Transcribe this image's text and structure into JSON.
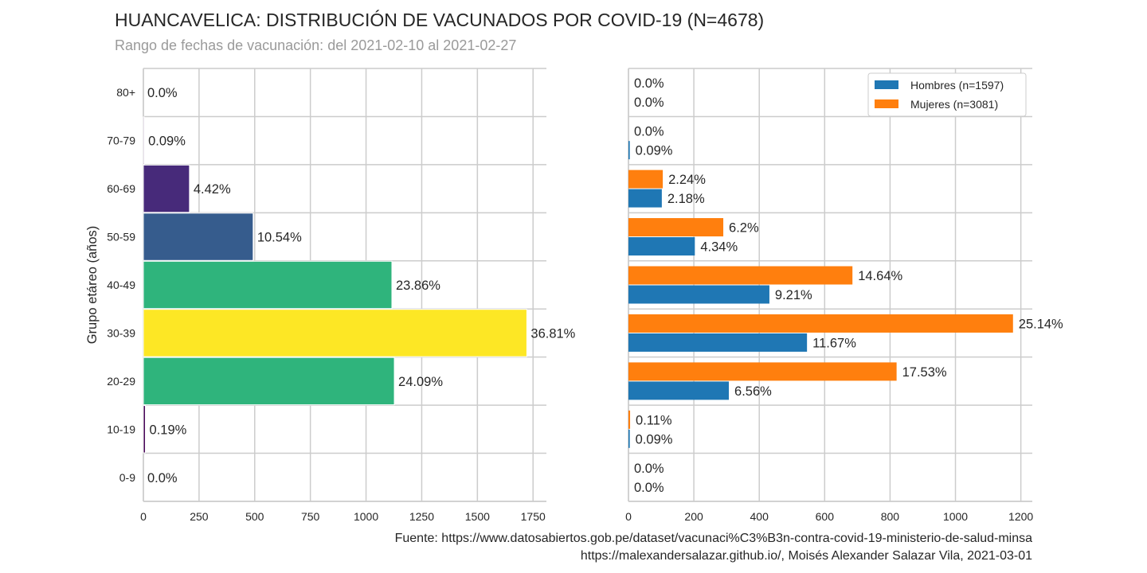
{
  "title": "HUANCAVELICA: DISTRIBUCIÓN DE VACUNADOS POR COVID-19 (N=4678)",
  "subtitle": "Rango de fechas de vacunación: del 2021-02-10 al 2021-02-27",
  "footer": {
    "source": "Fuente: https://www.datosabiertos.gob.pe/dataset/vacunaci%C3%B3n-contra-covid-19-ministerio-de-salud-minsa",
    "credit": "https://malexandersalazar.github.io/, Moisés Alexander Salazar Vila, 2021-03-01"
  },
  "chart_data": [
    {
      "type": "bar",
      "orientation": "horizontal",
      "categories": [
        "80+",
        "70-79",
        "60-69",
        "50-59",
        "40-49",
        "30-39",
        "20-29",
        "10-19",
        "0-9"
      ],
      "values": [
        0,
        4,
        207,
        493,
        1116,
        1722,
        1127,
        9,
        0
      ],
      "data_labels": [
        "0.0%",
        "0.09%",
        "4.42%",
        "10.54%",
        "23.86%",
        "36.81%",
        "24.09%",
        "0.19%",
        "0.0%"
      ],
      "bar_colors": [
        "#440154",
        "#440154",
        "#472a7a",
        "#365c8d",
        "#2fb47c",
        "#fde725",
        "#2fb47c",
        "#440154",
        "#440154"
      ],
      "ylabel": "Grupo etáreo (años)",
      "xlabel": "",
      "xlim": [
        0,
        1810
      ],
      "xticks": [
        0,
        250,
        500,
        750,
        1000,
        1250,
        1500,
        1750
      ],
      "grid": true
    },
    {
      "type": "bar",
      "orientation": "horizontal",
      "categories": [
        "80+",
        "70-79",
        "60-69",
        "50-59",
        "40-49",
        "30-39",
        "20-29",
        "10-19",
        "0-9"
      ],
      "series": [
        {
          "name": "Hombres (n=1597)",
          "color": "#1f77b4",
          "values": [
            0,
            4,
            102,
            203,
            431,
            546,
            307,
            4,
            0
          ],
          "data_labels": [
            "0.0%",
            "0.09%",
            "2.18%",
            "4.34%",
            "9.21%",
            "11.67%",
            "6.56%",
            "0.09%",
            "0.0%"
          ]
        },
        {
          "name": "Mujeres (n=3081)",
          "color": "#ff7f0e",
          "values": [
            0,
            0,
            105,
            290,
            685,
            1176,
            820,
            5,
            0
          ],
          "data_labels": [
            "0.0%",
            "0.0%",
            "2.24%",
            "6.2%",
            "14.64%",
            "25.14%",
            "17.53%",
            "0.11%",
            "0.0%"
          ]
        }
      ],
      "xlim": [
        0,
        1235
      ],
      "xticks": [
        0,
        200,
        400,
        600,
        800,
        1000,
        1200
      ],
      "legend": "top-right",
      "grid": true
    }
  ]
}
